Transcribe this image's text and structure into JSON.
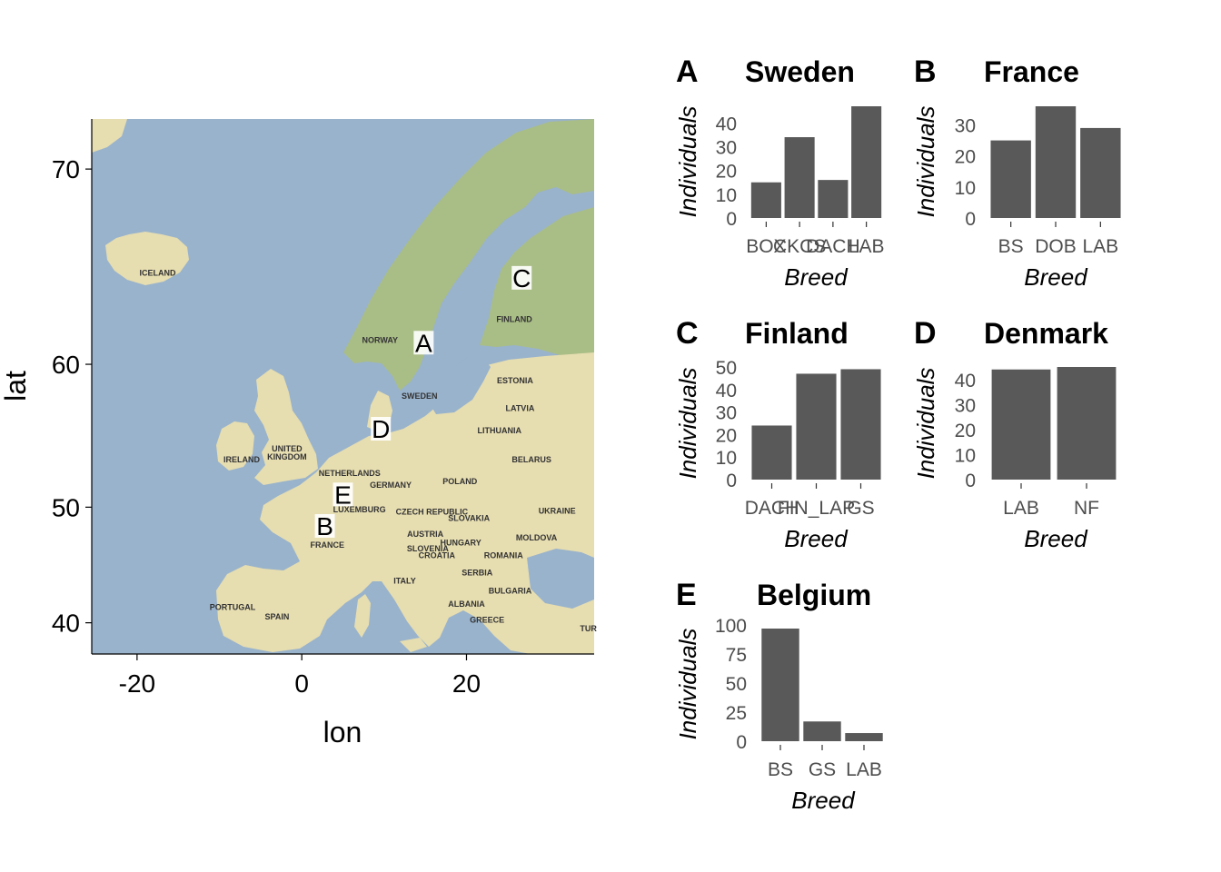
{
  "colors": {
    "sea": "#99b3cc",
    "land": "#e6ddb0",
    "land_green": "#a9bd86",
    "bar": "#595959",
    "axis": "#000000",
    "tick_text": "#4d4d4d"
  },
  "map": {
    "xlabel": "lon",
    "ylabel": "lat",
    "xticks": [
      -20,
      0,
      20
    ],
    "yticks": [
      40,
      50,
      60,
      70
    ],
    "xlim": [
      -25.5,
      35.5
    ],
    "ylim": [
      37,
      72
    ],
    "markers": [
      {
        "label": "A",
        "lon": 14.8,
        "lat": 61.3
      },
      {
        "label": "B",
        "lon": 2.8,
        "lat": 48.5
      },
      {
        "label": "C",
        "lon": 26.7,
        "lat": 64.9
      },
      {
        "label": "D",
        "lon": 9.6,
        "lat": 55.8
      },
      {
        "label": "E",
        "lon": 5.0,
        "lat": 51.0
      }
    ],
    "place_labels": [
      {
        "text": "ICELAND",
        "lon": -17.5,
        "lat": 65.0
      },
      {
        "text": "NORWAY",
        "lon": 9.5,
        "lat": 61.3
      },
      {
        "text": "SWEDEN",
        "lon": 14.3,
        "lat": 57.8
      },
      {
        "text": "FINLAND",
        "lon": 25.8,
        "lat": 62.5
      },
      {
        "text": "ESTONIA",
        "lon": 25.9,
        "lat": 58.8
      },
      {
        "text": "LATVIA",
        "lon": 26.5,
        "lat": 57.0
      },
      {
        "text": "LITHUANIA",
        "lon": 24.0,
        "lat": 55.5
      },
      {
        "text": "BELARUS",
        "lon": 27.9,
        "lat": 53.4
      },
      {
        "text": "UKRAINE",
        "lon": 31.0,
        "lat": 49.5
      },
      {
        "text": "MOLDOVA",
        "lon": 28.5,
        "lat": 47.3
      },
      {
        "text": "ROMANIA",
        "lon": 24.5,
        "lat": 45.8
      },
      {
        "text": "BULGARIA",
        "lon": 25.3,
        "lat": 42.7
      },
      {
        "text": "GREECE",
        "lon": 22.5,
        "lat": 40.0
      },
      {
        "text": "TUR",
        "lon": 34.8,
        "lat": 39.2
      },
      {
        "text": "UNITED",
        "lon": -1.8,
        "lat": 54.2
      },
      {
        "text": "KINGDOM",
        "lon": -1.8,
        "lat": 53.6
      },
      {
        "text": "IRELAND",
        "lon": -7.3,
        "lat": 53.4
      },
      {
        "text": "NETHERLANDS",
        "lon": 5.8,
        "lat": 52.4
      },
      {
        "text": "GERMANY",
        "lon": 10.8,
        "lat": 51.5
      },
      {
        "text": "POLAND",
        "lon": 19.2,
        "lat": 51.8
      },
      {
        "text": "LUXEMBURG",
        "lon": 7.0,
        "lat": 49.6
      },
      {
        "text": "CZECH REPUBLIC",
        "lon": 15.8,
        "lat": 49.4
      },
      {
        "text": "SLOVAKIA",
        "lon": 20.3,
        "lat": 48.9
      },
      {
        "text": "AUSTRIA",
        "lon": 15.0,
        "lat": 47.6
      },
      {
        "text": "HUNGARY",
        "lon": 19.3,
        "lat": 46.9
      },
      {
        "text": "SLOVENIA",
        "lon": 15.3,
        "lat": 46.4
      },
      {
        "text": "CROATIA",
        "lon": 16.4,
        "lat": 45.8
      },
      {
        "text": "SERBIA",
        "lon": 21.3,
        "lat": 44.3
      },
      {
        "text": "FRANCE",
        "lon": 3.1,
        "lat": 46.7
      },
      {
        "text": "ITALY",
        "lon": 12.5,
        "lat": 43.6
      },
      {
        "text": "SPAIN",
        "lon": -3.0,
        "lat": 40.3
      },
      {
        "text": "PORTUGAL",
        "lon": -8.4,
        "lat": 41.2
      },
      {
        "text": "ALBANIA",
        "lon": 20.0,
        "lat": 41.5
      }
    ]
  },
  "chart_data": [
    {
      "panel": "A",
      "title": "Sweden",
      "type": "bar",
      "xlabel": "Breed",
      "ylabel": "Individuals",
      "categories": [
        "BOX",
        "CKCS",
        "DACH",
        "LAB"
      ],
      "values": [
        15,
        34,
        16,
        47
      ],
      "yticks": [
        0,
        10,
        20,
        30,
        40
      ],
      "ylim": [
        0,
        47
      ]
    },
    {
      "panel": "B",
      "title": "France",
      "type": "bar",
      "xlabel": "Breed",
      "ylabel": "Individuals",
      "categories": [
        "BS",
        "DOB",
        "LAB"
      ],
      "values": [
        25,
        36,
        29
      ],
      "yticks": [
        0,
        10,
        20,
        30
      ],
      "ylim": [
        0,
        36
      ]
    },
    {
      "panel": "C",
      "title": "Finland",
      "type": "bar",
      "xlabel": "Breed",
      "ylabel": "Individuals",
      "categories": [
        "DACH",
        "FIN_LAP",
        "GS"
      ],
      "values": [
        24,
        47,
        49
      ],
      "yticks": [
        0,
        10,
        20,
        30,
        40,
        50
      ],
      "ylim": [
        0,
        50
      ]
    },
    {
      "panel": "D",
      "title": "Denmark",
      "type": "bar",
      "xlabel": "Breed",
      "ylabel": "Individuals",
      "categories": [
        "LAB",
        "NF"
      ],
      "values": [
        44,
        45
      ],
      "yticks": [
        0,
        10,
        20,
        30,
        40
      ],
      "ylim": [
        0,
        45
      ]
    },
    {
      "panel": "E",
      "title": "Belgium",
      "type": "bar",
      "xlabel": "Breed",
      "ylabel": "Individuals",
      "categories": [
        "BS",
        "GS",
        "LAB"
      ],
      "values": [
        97,
        17,
        7
      ],
      "yticks": [
        0,
        25,
        50,
        75,
        100
      ],
      "ylim": [
        0,
        97
      ]
    }
  ]
}
